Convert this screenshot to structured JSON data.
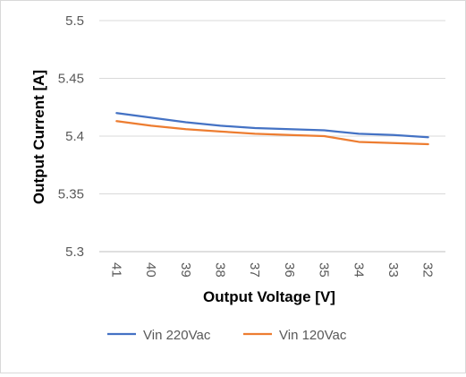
{
  "chart_data": {
    "type": "line",
    "xlabel": "Output Voltage [V]",
    "ylabel": "Output Current [A]",
    "categories": [
      "41",
      "40",
      "39",
      "38",
      "37",
      "36",
      "35",
      "34",
      "33",
      "32"
    ],
    "ylim": [
      5.3,
      5.5
    ],
    "yticks": [
      "5.3",
      "5.35",
      "5.4",
      "5.45",
      "5.5"
    ],
    "grid": true,
    "legend_position": "bottom",
    "series": [
      {
        "name": "Vin 220Vac",
        "color": "#4472c4",
        "values": [
          5.42,
          5.416,
          5.412,
          5.409,
          5.407,
          5.406,
          5.405,
          5.402,
          5.401,
          5.399
        ]
      },
      {
        "name": "Vin 120Vac",
        "color": "#ed7d31",
        "values": [
          5.413,
          5.409,
          5.406,
          5.404,
          5.402,
          5.401,
          5.4,
          5.395,
          5.394,
          5.393
        ]
      }
    ]
  }
}
